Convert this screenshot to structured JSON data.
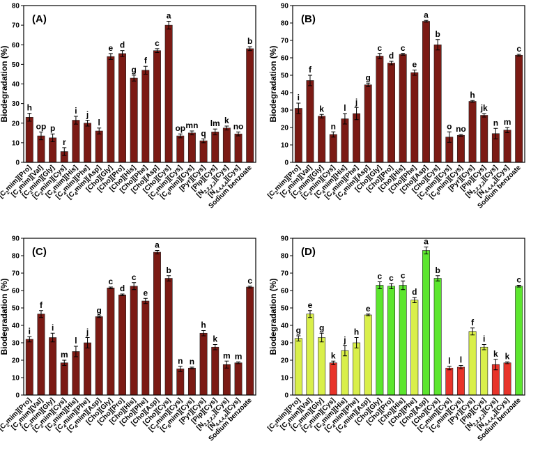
{
  "chart_data": [
    {
      "type": "bar",
      "panel_label": "(A)",
      "title": "",
      "ylabel": "Biodegradation (%)",
      "xlabel": "",
      "ylim": [
        0,
        80
      ],
      "yticks": [
        "0",
        "10",
        "20",
        "30",
        "40",
        "50",
        "60",
        "70",
        "80"
      ],
      "categories": [
        "[C2mim][Pro]",
        "[C2mim][Val]",
        "[C2mim][Gly]",
        "[C2mim][Cys]",
        "[C4mim][His]",
        "[C4mim][Phe]",
        "[C4mim][Asp]",
        "[Cho][Gly]",
        "[Cho][Pro]",
        "[Cho][His]",
        "[Cho][Phe]",
        "[Cho][Asp]",
        "[Cho][Cys]",
        "[C2mim][Cys]",
        "[C6mim][Cys]",
        "[Pyr][Cys]",
        "[Pip][Cys]",
        "[N2,2,2,2][Cys]",
        "[N4,4,4,4][Cys]",
        "Sodium benzoate"
      ],
      "values": [
        23.0,
        13.5,
        12.5,
        5.5,
        21.5,
        20.0,
        16.0,
        54.0,
        55.5,
        43.0,
        47.0,
        57.0,
        70.0,
        13.5,
        15.0,
        11.0,
        15.5,
        17.5,
        14.5,
        58.0
      ],
      "errors": [
        2,
        2,
        2,
        2,
        2,
        1.5,
        1.5,
        1.5,
        1.5,
        1.5,
        2,
        1,
        2,
        1,
        1,
        1,
        1.5,
        1,
        1,
        1
      ],
      "letters": [
        "h",
        "op",
        "p",
        "r",
        "i",
        "j",
        "l",
        "e",
        "d",
        "g",
        "f",
        "c",
        "a",
        "op",
        "mn",
        "q",
        "lm",
        "k",
        "no",
        "b"
      ],
      "colors": [
        "#7b1a14"
      ]
    },
    {
      "type": "bar",
      "panel_label": "(B)",
      "title": "",
      "ylabel": "Biodegradation (%)",
      "xlabel": "",
      "ylim": [
        0,
        90
      ],
      "yticks": [
        "0",
        "10",
        "20",
        "30",
        "40",
        "50",
        "60",
        "70",
        "80",
        "90"
      ],
      "categories": [
        "[C2mim][Pro]",
        "[C2mim][Val]",
        "[C2mim][Gly]",
        "[C2mim][Cys]",
        "[C4mim][His]",
        "[C4mim][Phe]",
        "[C4mim][Asp]",
        "[Cho][Gly]",
        "[Cho][Pro]",
        "[Cho][His]",
        "[Cho][Phe]",
        "[Cho][Asp]",
        "[Cho][Cys]",
        "[C2mim][Cys]",
        "[C6mim][Cys]",
        "[Pyr][Cys]",
        "[Pip][Cys]",
        "[N2,2,2,2][Cys]",
        "[N4,4,4,4][Cys]",
        "Sodium benzoate"
      ],
      "values": [
        31.0,
        47.0,
        26.5,
        16.0,
        25.0,
        28.0,
        44.5,
        61.0,
        57.0,
        62.0,
        51.5,
        81.0,
        67.5,
        14.5,
        15.5,
        35.0,
        27.0,
        16.5,
        18.5,
        61.5
      ],
      "errors": [
        3,
        3,
        1,
        1.5,
        3,
        3.5,
        1,
        1.5,
        1,
        0.5,
        1.5,
        0.5,
        3,
        3,
        0.5,
        0.5,
        1,
        3,
        1.5,
        0.5
      ],
      "letters": [
        "i",
        "f",
        "k",
        "n",
        "l",
        "j",
        "g",
        "c",
        "d",
        "c",
        "e",
        "a",
        "b",
        "o",
        "no",
        "h",
        "jk",
        "n",
        "m",
        "c"
      ],
      "colors": [
        "#7b1a14"
      ]
    },
    {
      "type": "bar",
      "panel_label": "(C)",
      "title": "",
      "ylabel": "Biodegradation (%)",
      "xlabel": "",
      "ylim": [
        0,
        90
      ],
      "yticks": [
        "0",
        "10",
        "20",
        "30",
        "40",
        "50",
        "60",
        "70",
        "80",
        "90"
      ],
      "categories": [
        "[C2mim][Pro]",
        "[C2mim][Val]",
        "[C2mim][Gly]",
        "[C2mim][Cys]",
        "[C4mim][His]",
        "[C4mim][Phe]",
        "[C4mim][Asp]",
        "[Cho][Gly]",
        "[Cho][Pro]",
        "[Cho][His]",
        "[Cho][Phe]",
        "[Cho][Asp]",
        "[Cho][Cys]",
        "[C2mim][Cys]",
        "[C6mim][Cys]",
        "[Pyr][Cys]",
        "[Pip][Cys]",
        "[N2,2,2,2][Cys]",
        "[N4,4,4,4][Cys]",
        "Sodium benzoate"
      ],
      "values": [
        32.0,
        46.5,
        33.0,
        18.5,
        25.0,
        30.0,
        45.0,
        61.5,
        57.5,
        62.5,
        54.0,
        82.0,
        67.0,
        15.0,
        15.5,
        35.5,
        27.5,
        17.5,
        18.5,
        62.0
      ],
      "errors": [
        1.5,
        2,
        2.5,
        1.5,
        3,
        3,
        0.5,
        0.5,
        0.5,
        2,
        1.5,
        1,
        1.5,
        1.5,
        0.5,
        1.5,
        1.5,
        2,
        0.5,
        0.5
      ],
      "letters": [
        "i",
        "f",
        "i",
        "m",
        "l",
        "j",
        "g",
        "c",
        "d",
        "c",
        "e",
        "a",
        "b",
        "n",
        "n",
        "h",
        "k",
        "m",
        "m",
        "c"
      ],
      "colors": [
        "#7b1a14"
      ]
    },
    {
      "type": "bar",
      "panel_label": "(D)",
      "title": "",
      "ylabel": "Biodegradation (%)",
      "xlabel": "",
      "ylim": [
        0,
        90
      ],
      "yticks": [
        "0",
        "10",
        "20",
        "30",
        "40",
        "50",
        "60",
        "70",
        "80",
        "90"
      ],
      "categories": [
        "[C2mim][Pro]",
        "[C2mim][Val]",
        "[C2mim][Gly]",
        "[C2mim][Cys]",
        "[C4mim][His]",
        "[C4mim][Phe]",
        "[C4mim][Asp]",
        "[Cho][Gly]",
        "[Cho][Pro]",
        "[Cho][His]",
        "[Cho][Phe]",
        "[Cho][Asp]",
        "[Cho][Cys]",
        "[C2mim][Cys]",
        "[C6mim][Cys]",
        "[Pyr][Cys]",
        "[Pip][Cys]",
        "[N2,2,2,2][Cys]",
        "[N4,4,4,4][Cys]",
        "Sodium benzoate"
      ],
      "values": [
        32.5,
        46.5,
        33.0,
        18.5,
        25.5,
        30.0,
        46.0,
        63.0,
        62.5,
        63.0,
        54.5,
        83.0,
        67.0,
        15.5,
        16.0,
        36.5,
        27.5,
        17.5,
        18.5,
        62.5
      ],
      "errors": [
        1.5,
        2,
        2.5,
        1,
        3,
        3,
        0.5,
        2,
        1.5,
        2.5,
        1.5,
        2,
        1.5,
        1,
        1,
        2,
        1.5,
        3,
        0.5,
        0.5
      ],
      "letters": [
        "g",
        "e",
        "g",
        "k",
        "j",
        "h",
        "e",
        "c",
        "c",
        "c",
        "d",
        "a",
        "b",
        "l",
        "l",
        "f",
        "i",
        "k",
        "k",
        "c"
      ],
      "colors": [
        "#d9ef4a",
        "#d9ef4a",
        "#d9ef4a",
        "#e8342a",
        "#d9ef4a",
        "#d9ef4a",
        "#d9ef4a",
        "#5ce62e",
        "#5ce62e",
        "#5ce62e",
        "#d9ef4a",
        "#5ce62e",
        "#5ce62e",
        "#e8342a",
        "#e8342a",
        "#d9ef4a",
        "#d9ef4a",
        "#e8342a",
        "#e8342a",
        "#5ce62e"
      ]
    }
  ]
}
